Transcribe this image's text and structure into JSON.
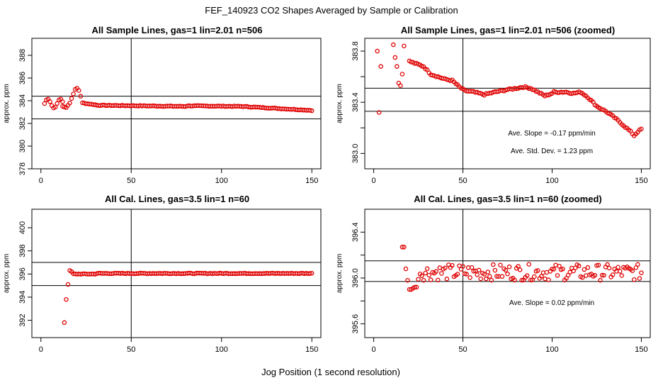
{
  "figure": {
    "title": "FEF_140923  CO2 Shapes Averaged by Sample or Calibration",
    "xlabel": "Jog Position (1 second resolution)",
    "point_color": "#e00000"
  },
  "chart_data": [
    {
      "type": "scatter",
      "title": "All Sample Lines, gas=1 lin=2.01 n=506",
      "xlabel": "",
      "ylabel": "approx. ppm",
      "xlim": [
        -5,
        155
      ],
      "ylim": [
        378,
        389.5
      ],
      "xticks": [
        0,
        50,
        100,
        150
      ],
      "yticks": [
        378,
        380,
        382,
        384,
        386,
        388
      ],
      "vline": 50,
      "hlines": [
        382.4,
        384.4
      ],
      "annotations": [],
      "series": [
        {
          "name": "sample",
          "segments": [
            {
              "x0": 2,
              "x1": 12,
              "kind": "wave"
            },
            {
              "x0": 12,
              "x1": 22,
              "kind": "curve",
              "pts": [
                [
                  12,
                  383.5
                ],
                [
                  14,
                  383.4
                ],
                [
                  16,
                  383.8
                ],
                [
                  18,
                  384.6
                ],
                [
                  19,
                  385.0
                ],
                [
                  20,
                  385.1
                ],
                [
                  21,
                  384.9
                ],
                [
                  22,
                  384.4
                ]
              ]
            },
            {
              "x0": 23,
              "x1": 30,
              "kind": "lin",
              "y0": 383.8,
              "y1": 383.65
            },
            {
              "x0": 31,
              "x1": 80,
              "kind": "lin",
              "y0": 383.6,
              "y1": 383.5
            },
            {
              "x0": 81,
              "x1": 110,
              "kind": "lin",
              "y0": 383.55,
              "y1": 383.5
            },
            {
              "x0": 111,
              "x1": 150,
              "kind": "lin",
              "y0": 383.5,
              "y1": 383.15
            }
          ]
        }
      ]
    },
    {
      "type": "scatter",
      "title": "All Sample Lines, gas=1 lin=2.01 n=506 (zoomed)",
      "xlabel": "",
      "ylabel": "approx. ppm",
      "xlim": [
        -5,
        155
      ],
      "ylim": [
        382.88,
        383.9
      ],
      "xticks": [
        0,
        50,
        100,
        150
      ],
      "yticks": [
        383.0,
        383.4,
        383.8
      ],
      "ytick_labels": [
        "383.0",
        "383.4",
        "383.8"
      ],
      "minor_yticks": [
        383.2,
        383.6
      ],
      "vline": 50,
      "hlines": [
        383.33,
        383.51
      ],
      "annotations": [
        "Ave. Slope =  -0.17  ppm/min",
        "Ave. Std. Dev. =  1.23  ppm"
      ],
      "series": [
        {
          "name": "sample-zoom",
          "segments": [
            {
              "x0": 2,
              "x1": 17,
              "kind": "scatter",
              "pts": [
                [
                  2,
                  383.8
                ],
                [
                  3,
                  383.32
                ],
                [
                  4,
                  383.68
                ],
                [
                  11,
                  383.85
                ],
                [
                  12,
                  383.75
                ],
                [
                  13,
                  383.68
                ],
                [
                  14,
                  383.55
                ],
                [
                  15,
                  383.53
                ],
                [
                  16,
                  383.62
                ],
                [
                  17,
                  383.84
                ]
              ]
            },
            {
              "x0": 20,
              "x1": 50,
              "kind": "curve",
              "pts": [
                [
                  20,
                  383.72
                ],
                [
                  24,
                  383.7
                ],
                [
                  28,
                  383.68
                ],
                [
                  32,
                  383.62
                ],
                [
                  36,
                  383.6
                ],
                [
                  40,
                  383.58
                ],
                [
                  44,
                  383.57
                ],
                [
                  48,
                  383.52
                ],
                [
                  50,
                  383.5
                ]
              ]
            },
            {
              "x0": 51,
              "x1": 75,
              "kind": "curve",
              "pts": [
                [
                  51,
                  383.49
                ],
                [
                  56,
                  383.48
                ],
                [
                  62,
                  383.46
                ],
                [
                  68,
                  383.48
                ],
                [
                  72,
                  383.49
                ],
                [
                  75,
                  383.5
                ]
              ]
            },
            {
              "x0": 76,
              "x1": 100,
              "kind": "curve",
              "pts": [
                [
                  76,
                  383.5
                ],
                [
                  80,
                  383.51
                ],
                [
                  84,
                  383.52
                ],
                [
                  88,
                  383.51
                ],
                [
                  92,
                  383.48
                ],
                [
                  96,
                  383.45
                ],
                [
                  100,
                  383.47
                ]
              ]
            },
            {
              "x0": 101,
              "x1": 150,
              "kind": "curve",
              "pts": [
                [
                  101,
                  383.48
                ],
                [
                  108,
                  383.48
                ],
                [
                  112,
                  383.47
                ],
                [
                  116,
                  383.48
                ],
                [
                  120,
                  383.44
                ],
                [
                  125,
                  383.37
                ],
                [
                  130,
                  383.33
                ],
                [
                  135,
                  383.28
                ],
                [
                  140,
                  383.22
                ],
                [
                  144,
                  383.17
                ],
                [
                  146,
                  383.14
                ],
                [
                  148,
                  383.17
                ],
                [
                  150,
                  383.19
                ]
              ]
            }
          ]
        }
      ]
    },
    {
      "type": "scatter",
      "title": "All Cal. Lines, gas=3.5 lin=1 n=60",
      "xlabel": "",
      "ylabel": "approx. ppm",
      "xlim": [
        -5,
        155
      ],
      "ylim": [
        390.5,
        401.6
      ],
      "xticks": [
        0,
        50,
        100,
        150
      ],
      "yticks": [
        392,
        394,
        396,
        398,
        400
      ],
      "vline": 50,
      "hlines": [
        395.0,
        397.0
      ],
      "annotations": [],
      "series": [
        {
          "name": "cal",
          "segments": [
            {
              "x0": 13,
              "x1": 17,
              "kind": "scatter",
              "pts": [
                [
                  13,
                  391.8
                ],
                [
                  14,
                  393.8
                ],
                [
                  15,
                  395.1
                ],
                [
                  16,
                  396.3
                ],
                [
                  17,
                  396.2
                ]
              ]
            },
            {
              "x0": 18,
              "x1": 30,
              "kind": "lin",
              "y0": 396.0,
              "y1": 396.0
            },
            {
              "x0": 31,
              "x1": 150,
              "kind": "lin",
              "y0": 396.05,
              "y1": 396.05
            }
          ]
        }
      ]
    },
    {
      "type": "scatter",
      "title": "All Cal. Lines, gas=3.5 lin=1 n=60 (zoomed)",
      "xlabel": "",
      "ylabel": "approx. ppm",
      "xlim": [
        -5,
        155
      ],
      "ylim": [
        395.48,
        396.6
      ],
      "xticks": [
        0,
        50,
        100,
        150
      ],
      "yticks": [
        395.6,
        396.0,
        396.4
      ],
      "ytick_labels": [
        "395.6",
        "396.0",
        "396.4"
      ],
      "minor_yticks": [
        395.8,
        396.2
      ],
      "vline": 50,
      "hlines": [
        395.97,
        396.15
      ],
      "annotations": [
        "Ave. Slope =  0.02  ppm/min"
      ],
      "series": [
        {
          "name": "cal-zoom",
          "segments": [
            {
              "x0": 16,
              "x1": 24,
              "kind": "scatter",
              "pts": [
                [
                  16,
                  396.27
                ],
                [
                  17,
                  396.27
                ],
                [
                  18,
                  396.08
                ],
                [
                  19,
                  395.98
                ],
                [
                  20,
                  395.9
                ],
                [
                  21,
                  395.9
                ],
                [
                  22,
                  395.91
                ],
                [
                  23,
                  395.92
                ],
                [
                  24,
                  395.92
                ]
              ]
            },
            {
              "x0": 25,
              "x1": 150,
              "kind": "noisy",
              "y": 396.05,
              "amp": 0.07
            }
          ]
        }
      ]
    }
  ]
}
